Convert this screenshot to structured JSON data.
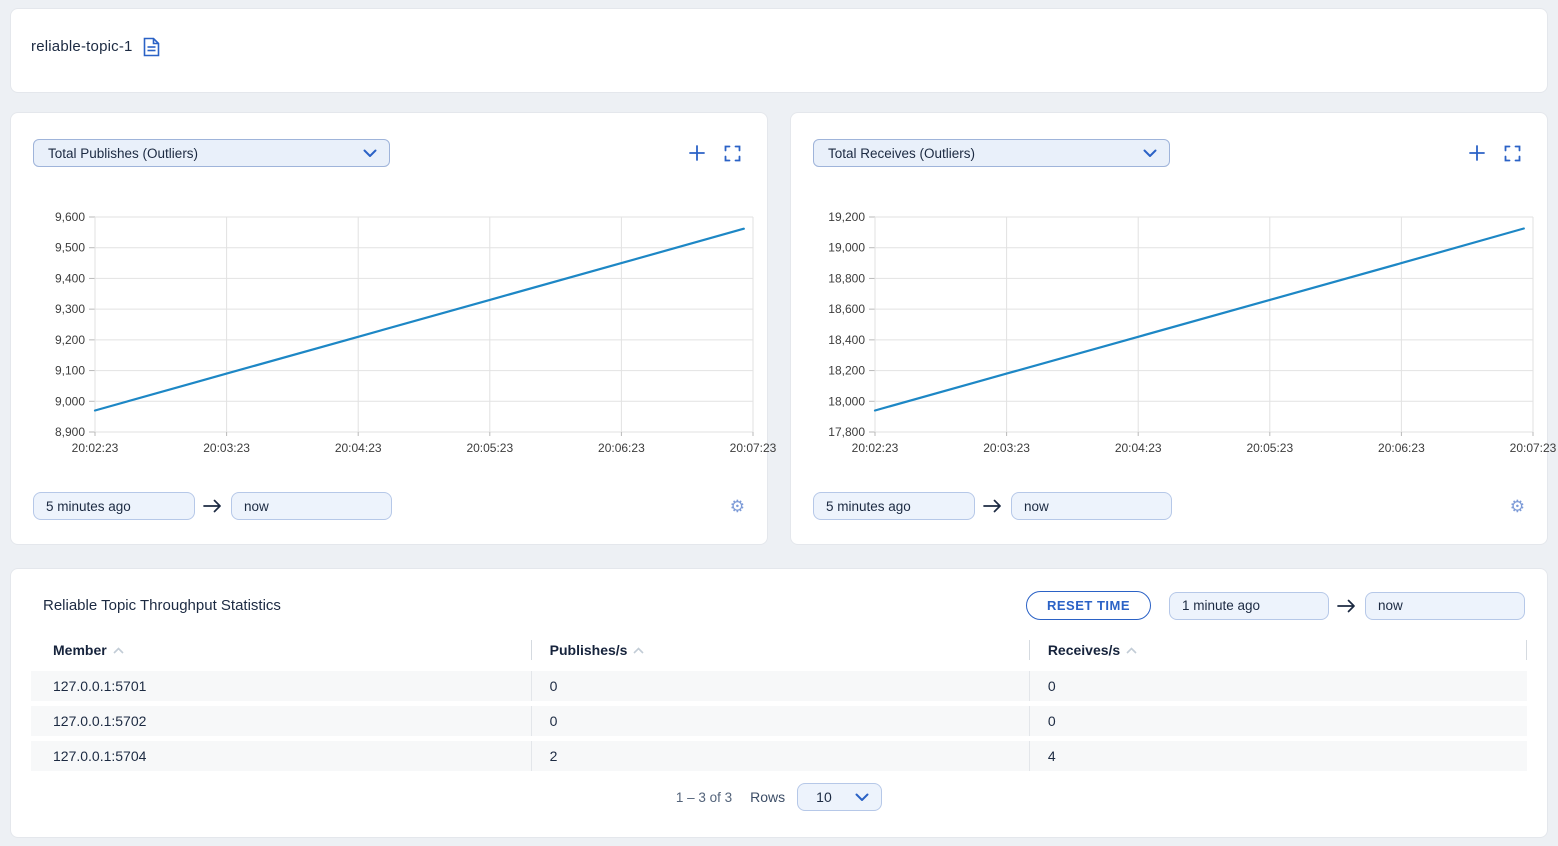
{
  "colors": {
    "accent_blue": "#2b62c6",
    "line_blue": "#1d87c5",
    "page_bg": "#edf0f4",
    "input_bg": "#edf3fc",
    "row_stripe": "#f7f8f9"
  },
  "topbar": {
    "title": "reliable-topic-1"
  },
  "panels": [
    {
      "from": "5 minutes ago",
      "to": "now"
    },
    {
      "from": "5 minutes ago",
      "to": "now"
    }
  ],
  "chart_data": [
    {
      "type": "line",
      "title": "Total Publishes (Outliers)",
      "x_ticks": [
        "20:02:23",
        "20:03:23",
        "20:04:23",
        "20:05:23",
        "20:06:23",
        "20:07:23"
      ],
      "x": [
        0,
        1,
        2,
        3,
        4,
        4.93
      ],
      "y": [
        8970,
        9090,
        9210,
        9330,
        9450,
        9562
      ],
      "ylim": [
        8900,
        9600
      ],
      "ytick_step": 100,
      "grid": true,
      "legend": "none",
      "line_color": "#1d87c5",
      "xlabel": "",
      "ylabel": ""
    },
    {
      "type": "line",
      "title": "Total Receives (Outliers)",
      "x_ticks": [
        "20:02:23",
        "20:03:23",
        "20:04:23",
        "20:05:23",
        "20:06:23",
        "20:07:23"
      ],
      "x": [
        0,
        1,
        2,
        3,
        4,
        4.93
      ],
      "y": [
        17940,
        18180,
        18420,
        18660,
        18900,
        19125
      ],
      "ylim": [
        17800,
        19200
      ],
      "ytick_step": 200,
      "grid": true,
      "legend": "none",
      "line_color": "#1d87c5",
      "xlabel": "",
      "ylabel": ""
    }
  ],
  "stats": {
    "title": "Reliable Topic Throughput Statistics",
    "reset_button": "RESET TIME",
    "from": "1 minute ago",
    "to": "now",
    "table": {
      "columns": [
        "Member",
        "Publishes/s",
        "Receives/s"
      ],
      "rows": [
        {
          "member": "127.0.0.1:5701",
          "publishes": "0",
          "receives": "0"
        },
        {
          "member": "127.0.0.1:5702",
          "publishes": "0",
          "receives": "0"
        },
        {
          "member": "127.0.0.1:5704",
          "publishes": "2",
          "receives": "4"
        }
      ]
    },
    "pagination": {
      "range": "1 – 3 of 3",
      "rows_label": "Rows",
      "rows_per_page": "10"
    }
  }
}
